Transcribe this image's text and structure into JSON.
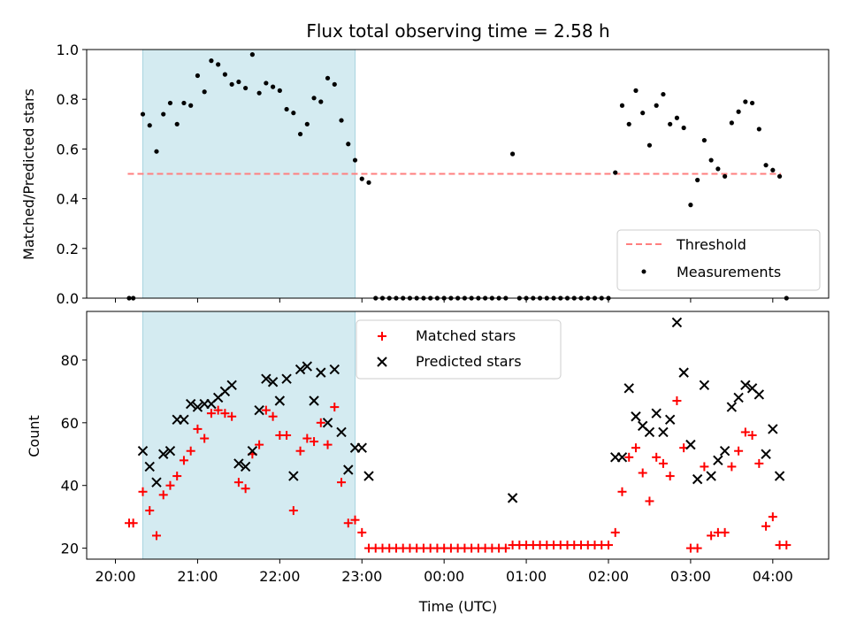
{
  "chart_data": {
    "type": "scatter",
    "title": "Flux total observing time = 2.58 h",
    "xlabel": "Time (UTC)",
    "x_ticks": [
      "20:00",
      "21:00",
      "22:00",
      "23:00",
      "00:00",
      "01:00",
      "02:00",
      "03:00",
      "04:00"
    ],
    "colors": {
      "span": "#d4ebf1",
      "threshold": "#ff7f7f",
      "measurement": "#000000",
      "matched": "#ff0000",
      "predicted": "#000000"
    },
    "top": {
      "ylabel": "Matched/Predicted stars",
      "ylim": [
        0,
        1.0
      ],
      "y_ticks": [
        "0.0",
        "0.2",
        "0.4",
        "0.6",
        "0.8",
        "1.0"
      ],
      "threshold": 0.5,
      "threshold_x_range": [
        20.15,
        4.1
      ],
      "legend": [
        "Threshold",
        "Measurements"
      ],
      "measurements": [
        [
          "20:10",
          0.0
        ],
        [
          "20:13",
          0.0
        ],
        [
          "20:20",
          0.74
        ],
        [
          "20:25",
          0.695
        ],
        [
          "20:30",
          0.59
        ],
        [
          "20:35",
          0.74
        ],
        [
          "20:40",
          0.785
        ],
        [
          "20:45",
          0.7
        ],
        [
          "20:50",
          0.785
        ],
        [
          "20:55",
          0.775
        ],
        [
          "21:00",
          0.895
        ],
        [
          "21:05",
          0.83
        ],
        [
          "21:10",
          0.955
        ],
        [
          "21:15",
          0.94
        ],
        [
          "21:20",
          0.9
        ],
        [
          "21:25",
          0.86
        ],
        [
          "21:30",
          0.87
        ],
        [
          "21:35",
          0.845
        ],
        [
          "21:40",
          0.98
        ],
        [
          "21:45",
          0.825
        ],
        [
          "21:50",
          0.865
        ],
        [
          "21:55",
          0.85
        ],
        [
          "22:00",
          0.835
        ],
        [
          "22:05",
          0.76
        ],
        [
          "22:10",
          0.745
        ],
        [
          "22:15",
          0.66
        ],
        [
          "22:20",
          0.7
        ],
        [
          "22:25",
          0.805
        ],
        [
          "22:30",
          0.79
        ],
        [
          "22:35",
          0.885
        ],
        [
          "22:40",
          0.86
        ],
        [
          "22:45",
          0.715
        ],
        [
          "22:50",
          0.62
        ],
        [
          "22:55",
          0.555
        ],
        [
          "23:00",
          0.48
        ],
        [
          "23:05",
          0.465
        ],
        [
          "23:10",
          0.0
        ],
        [
          "23:15",
          0.0
        ],
        [
          "23:20",
          0.0
        ],
        [
          "23:25",
          0.0
        ],
        [
          "23:30",
          0.0
        ],
        [
          "23:35",
          0.0
        ],
        [
          "23:40",
          0.0
        ],
        [
          "23:45",
          0.0
        ],
        [
          "23:50",
          0.0
        ],
        [
          "23:55",
          0.0
        ],
        [
          "00:00",
          0.0
        ],
        [
          "00:05",
          0.0
        ],
        [
          "00:10",
          0.0
        ],
        [
          "00:15",
          0.0
        ],
        [
          "00:20",
          0.0
        ],
        [
          "00:25",
          0.0
        ],
        [
          "00:30",
          0.0
        ],
        [
          "00:35",
          0.0
        ],
        [
          "00:40",
          0.0
        ],
        [
          "00:45",
          0.0
        ],
        [
          "00:50",
          0.58
        ],
        [
          "00:55",
          0.0
        ],
        [
          "01:00",
          0.0
        ],
        [
          "01:05",
          0.0
        ],
        [
          "01:10",
          0.0
        ],
        [
          "01:15",
          0.0
        ],
        [
          "01:20",
          0.0
        ],
        [
          "01:25",
          0.0
        ],
        [
          "01:30",
          0.0
        ],
        [
          "01:35",
          0.0
        ],
        [
          "01:40",
          0.0
        ],
        [
          "01:45",
          0.0
        ],
        [
          "01:50",
          0.0
        ],
        [
          "01:55",
          0.0
        ],
        [
          "02:00",
          0.0
        ],
        [
          "02:05",
          0.505
        ],
        [
          "02:10",
          0.775
        ],
        [
          "02:15",
          0.7
        ],
        [
          "02:20",
          0.835
        ],
        [
          "02:25",
          0.745
        ],
        [
          "02:30",
          0.615
        ],
        [
          "02:35",
          0.775
        ],
        [
          "02:40",
          0.82
        ],
        [
          "02:45",
          0.7
        ],
        [
          "02:50",
          0.725
        ],
        [
          "02:55",
          0.685
        ],
        [
          "03:00",
          0.375
        ],
        [
          "03:05",
          0.475
        ],
        [
          "03:10",
          0.635
        ],
        [
          "03:15",
          0.555
        ],
        [
          "03:20",
          0.52
        ],
        [
          "03:25",
          0.49
        ],
        [
          "03:30",
          0.705
        ],
        [
          "03:35",
          0.75
        ],
        [
          "03:40",
          0.79
        ],
        [
          "03:45",
          0.785
        ],
        [
          "03:50",
          0.68
        ],
        [
          "03:55",
          0.535
        ],
        [
          "04:00",
          0.515
        ],
        [
          "04:05",
          0.49
        ],
        [
          "04:10",
          0.0
        ]
      ]
    },
    "bottom": {
      "ylabel": "Count",
      "ylim": [
        16.5,
        95.5
      ],
      "y_ticks": [
        "20",
        "40",
        "60",
        "80"
      ],
      "legend": [
        "Matched stars",
        "Predicted stars"
      ],
      "matched": [
        [
          "20:10",
          28
        ],
        [
          "20:13",
          28
        ],
        [
          "20:20",
          38
        ],
        [
          "20:25",
          32
        ],
        [
          "20:30",
          24
        ],
        [
          "20:35",
          37
        ],
        [
          "20:40",
          40
        ],
        [
          "20:45",
          43
        ],
        [
          "20:50",
          48
        ],
        [
          "20:55",
          51
        ],
        [
          "21:00",
          58
        ],
        [
          "21:05",
          55
        ],
        [
          "21:10",
          63
        ],
        [
          "21:15",
          64
        ],
        [
          "21:20",
          63
        ],
        [
          "21:25",
          62
        ],
        [
          "21:30",
          41
        ],
        [
          "21:35",
          39
        ],
        [
          "21:40",
          50
        ],
        [
          "21:45",
          53
        ],
        [
          "21:50",
          64
        ],
        [
          "21:55",
          62
        ],
        [
          "22:00",
          56
        ],
        [
          "22:05",
          56
        ],
        [
          "22:10",
          32
        ],
        [
          "22:15",
          51
        ],
        [
          "22:20",
          55
        ],
        [
          "22:25",
          54
        ],
        [
          "22:30",
          60
        ],
        [
          "22:35",
          53
        ],
        [
          "22:40",
          65
        ],
        [
          "22:45",
          41
        ],
        [
          "22:50",
          28
        ],
        [
          "22:55",
          29
        ],
        [
          "23:00",
          25
        ],
        [
          "23:05",
          20
        ],
        [
          "23:10",
          20
        ],
        [
          "23:15",
          20
        ],
        [
          "23:20",
          20
        ],
        [
          "23:25",
          20
        ],
        [
          "23:30",
          20
        ],
        [
          "23:35",
          20
        ],
        [
          "23:40",
          20
        ],
        [
          "23:45",
          20
        ],
        [
          "23:50",
          20
        ],
        [
          "23:55",
          20
        ],
        [
          "00:00",
          20
        ],
        [
          "00:05",
          20
        ],
        [
          "00:10",
          20
        ],
        [
          "00:15",
          20
        ],
        [
          "00:20",
          20
        ],
        [
          "00:25",
          20
        ],
        [
          "00:30",
          20
        ],
        [
          "00:35",
          20
        ],
        [
          "00:40",
          20
        ],
        [
          "00:45",
          20
        ],
        [
          "00:50",
          21
        ],
        [
          "00:55",
          21
        ],
        [
          "01:00",
          21
        ],
        [
          "01:05",
          21
        ],
        [
          "01:10",
          21
        ],
        [
          "01:15",
          21
        ],
        [
          "01:20",
          21
        ],
        [
          "01:25",
          21
        ],
        [
          "01:30",
          21
        ],
        [
          "01:35",
          21
        ],
        [
          "01:40",
          21
        ],
        [
          "01:45",
          21
        ],
        [
          "01:50",
          21
        ],
        [
          "01:55",
          21
        ],
        [
          "02:00",
          21
        ],
        [
          "02:05",
          25
        ],
        [
          "02:10",
          38
        ],
        [
          "02:15",
          49
        ],
        [
          "02:20",
          52
        ],
        [
          "02:25",
          44
        ],
        [
          "02:30",
          35
        ],
        [
          "02:35",
          49
        ],
        [
          "02:40",
          47
        ],
        [
          "02:45",
          43
        ],
        [
          "02:50",
          67
        ],
        [
          "02:55",
          52
        ],
        [
          "03:00",
          20
        ],
        [
          "03:05",
          20
        ],
        [
          "03:10",
          46
        ],
        [
          "03:15",
          24
        ],
        [
          "03:20",
          25
        ],
        [
          "03:25",
          25
        ],
        [
          "03:30",
          46
        ],
        [
          "03:35",
          51
        ],
        [
          "03:40",
          57
        ],
        [
          "03:45",
          56
        ],
        [
          "03:50",
          47
        ],
        [
          "03:55",
          27
        ],
        [
          "04:00",
          30
        ],
        [
          "04:05",
          21
        ],
        [
          "04:10",
          21
        ]
      ],
      "predicted": [
        [
          "20:20",
          51
        ],
        [
          "20:25",
          46
        ],
        [
          "20:30",
          41
        ],
        [
          "20:35",
          50
        ],
        [
          "20:40",
          51
        ],
        [
          "20:45",
          61
        ],
        [
          "20:50",
          61
        ],
        [
          "20:55",
          66
        ],
        [
          "21:00",
          65
        ],
        [
          "21:05",
          66
        ],
        [
          "21:10",
          66
        ],
        [
          "21:15",
          68
        ],
        [
          "21:20",
          70
        ],
        [
          "21:25",
          72
        ],
        [
          "21:30",
          47
        ],
        [
          "21:35",
          46
        ],
        [
          "21:40",
          51
        ],
        [
          "21:45",
          64
        ],
        [
          "21:50",
          74
        ],
        [
          "21:55",
          73
        ],
        [
          "22:00",
          67
        ],
        [
          "22:05",
          74
        ],
        [
          "22:10",
          43
        ],
        [
          "22:15",
          77
        ],
        [
          "22:20",
          78
        ],
        [
          "22:25",
          67
        ],
        [
          "22:30",
          76
        ],
        [
          "22:35",
          60
        ],
        [
          "22:40",
          77
        ],
        [
          "22:45",
          57
        ],
        [
          "22:50",
          45
        ],
        [
          "22:55",
          52
        ],
        [
          "23:00",
          52
        ],
        [
          "23:05",
          43
        ],
        [
          "00:50",
          36
        ],
        [
          "02:05",
          49
        ],
        [
          "02:10",
          49
        ],
        [
          "02:15",
          71
        ],
        [
          "02:20",
          62
        ],
        [
          "02:25",
          59
        ],
        [
          "02:30",
          57
        ],
        [
          "02:35",
          63
        ],
        [
          "02:40",
          57
        ],
        [
          "02:45",
          61
        ],
        [
          "02:50",
          92
        ],
        [
          "02:55",
          76
        ],
        [
          "03:00",
          53
        ],
        [
          "03:05",
          42
        ],
        [
          "03:10",
          72
        ],
        [
          "03:15",
          43
        ],
        [
          "03:20",
          48
        ],
        [
          "03:25",
          51
        ],
        [
          "03:30",
          65
        ],
        [
          "03:35",
          68
        ],
        [
          "03:40",
          72
        ],
        [
          "03:45",
          71
        ],
        [
          "03:50",
          69
        ],
        [
          "03:55",
          50
        ],
        [
          "04:00",
          58
        ],
        [
          "04:05",
          43
        ]
      ]
    },
    "shaded_span": [
      "20:20",
      "22:55"
    ]
  }
}
